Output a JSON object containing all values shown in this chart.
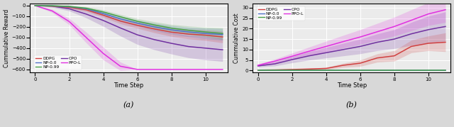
{
  "timesteps": [
    0,
    1,
    2,
    3,
    4,
    5,
    6,
    7,
    8,
    9,
    10,
    11
  ],
  "reward": {
    "DDPG": [
      0,
      -5,
      -15,
      -40,
      -90,
      -145,
      -185,
      -220,
      -250,
      -268,
      -278,
      -295
    ],
    "NP0": [
      0,
      -3,
      -10,
      -30,
      -75,
      -125,
      -165,
      -200,
      -228,
      -248,
      -262,
      -272
    ],
    "NP99": [
      0,
      -2,
      -8,
      -25,
      -60,
      -105,
      -148,
      -182,
      -212,
      -232,
      -248,
      -262
    ],
    "CPO": [
      0,
      -5,
      -30,
      -80,
      -140,
      -210,
      -275,
      -320,
      -355,
      -385,
      -400,
      -415
    ],
    "PPOL": [
      0,
      -50,
      -150,
      -300,
      -450,
      -570,
      -600,
      -600,
      -600,
      -600,
      -600,
      -600
    ]
  },
  "reward_std": {
    "DDPG": [
      2,
      5,
      10,
      15,
      20,
      25,
      28,
      35,
      40,
      45,
      50,
      55
    ],
    "NP0": [
      2,
      5,
      10,
      15,
      20,
      25,
      28,
      35,
      40,
      45,
      50,
      55
    ],
    "NP99": [
      2,
      5,
      10,
      15,
      20,
      22,
      25,
      30,
      35,
      40,
      45,
      55
    ],
    "CPO": [
      2,
      10,
      20,
      35,
      55,
      75,
      90,
      95,
      100,
      105,
      110,
      110
    ],
    "PPOL": [
      2,
      15,
      30,
      50,
      60,
      40,
      0,
      0,
      0,
      0,
      0,
      0
    ]
  },
  "cost": {
    "DDPG": [
      0.2,
      0.3,
      0.5,
      0.7,
      1.0,
      2.5,
      3.5,
      6.0,
      7.0,
      11.5,
      13.0,
      13.5
    ],
    "NP0": [
      0.0,
      0.0,
      0.0,
      0.0,
      0.0,
      0.0,
      0.0,
      0.0,
      0.0,
      0.0,
      0.0,
      0.0
    ],
    "NP99": [
      0.0,
      0.0,
      0.0,
      0.0,
      0.0,
      0.0,
      0.0,
      0.0,
      0.0,
      0.0,
      0.0,
      0.0
    ],
    "CPO": [
      2.2,
      3.2,
      5.2,
      7.0,
      8.5,
      10.0,
      11.5,
      13.5,
      15.0,
      17.5,
      19.5,
      21.0
    ],
    "PPOL": [
      2.5,
      4.5,
      6.8,
      9.2,
      11.5,
      13.8,
      16.0,
      18.5,
      21.0,
      24.0,
      27.0,
      29.0
    ]
  },
  "cost_std": {
    "DDPG": [
      0.1,
      0.2,
      0.3,
      0.4,
      0.5,
      1.0,
      1.5,
      2.0,
      2.5,
      3.0,
      3.5,
      4.5
    ],
    "NP0": [
      0.0,
      0.0,
      0.0,
      0.0,
      0.0,
      0.0,
      0.0,
      0.0,
      0.0,
      0.0,
      0.0,
      0.0
    ],
    "NP99": [
      0.0,
      0.0,
      0.0,
      0.0,
      0.0,
      0.0,
      0.0,
      0.0,
      0.0,
      0.0,
      0.0,
      0.0
    ],
    "CPO": [
      0.5,
      1.0,
      1.5,
      2.0,
      2.5,
      3.0,
      3.5,
      4.0,
      4.5,
      5.5,
      6.5,
      7.0
    ],
    "PPOL": [
      0.5,
      1.0,
      1.5,
      2.0,
      2.5,
      3.0,
      3.5,
      4.0,
      4.5,
      5.0,
      5.5,
      6.0
    ]
  },
  "colors": {
    "DDPG": "#d04040",
    "NP0": "#5070c8",
    "NP99": "#48a048",
    "CPO": "#7030a0",
    "PPOL": "#e030e0"
  },
  "labels": {
    "DDPG": "DDPG",
    "NP0": "NP-0.0",
    "NP99": "NP-0.99",
    "CPO": "CPO",
    "PPOL": "PPO-L"
  },
  "ylabel_a": "Cummulative Reward",
  "ylabel_b": "Cummulative Cost",
  "xlabel": "Time Step",
  "ylim_a": [
    -630,
    20
  ],
  "ylim_b": [
    -1,
    32
  ],
  "xlim": [
    -0.3,
    11.3
  ],
  "yticks_a": [
    0,
    -100,
    -200,
    -300,
    -400,
    -500,
    -600
  ],
  "yticks_b": [
    0,
    5,
    10,
    15,
    20,
    25,
    30
  ],
  "xticks": [
    0,
    2,
    4,
    6,
    8,
    10
  ],
  "caption_a": "(a)",
  "caption_b": "(b)",
  "bg_color": "#ebebeb",
  "fig_bg_color": "#d8d8d8",
  "grid_color": "#ffffff",
  "fill_alpha": 0.2
}
